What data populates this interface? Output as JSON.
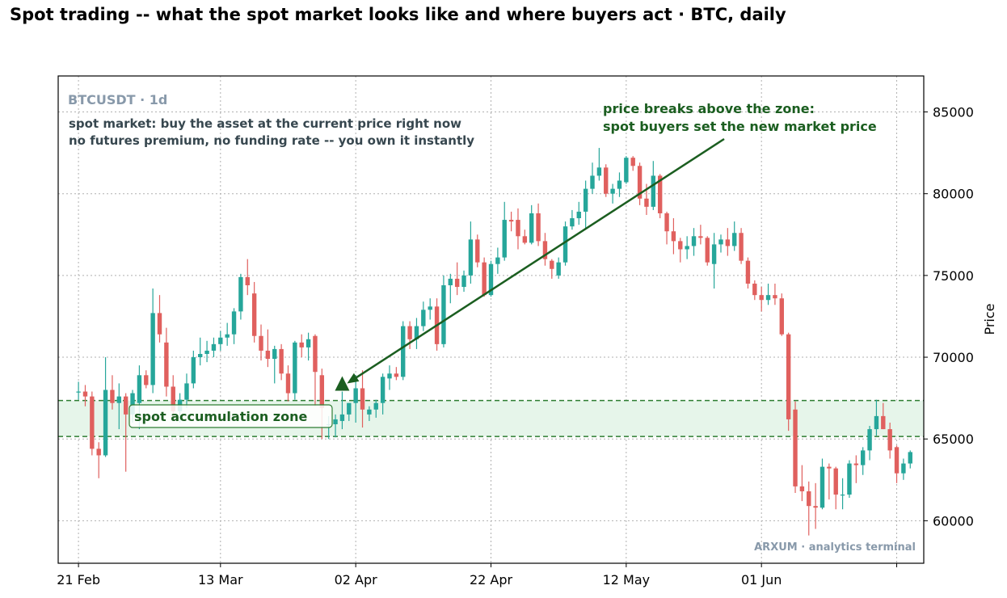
{
  "chart_data": {
    "type": "candlestick",
    "title": "Spot trading -- what the spot market looks like and where buyers act  ·  BTC, daily",
    "symbol_label": "BTCUSDT · 1d",
    "ylabel": "Price",
    "xlabel": "",
    "ylim": [
      57400,
      87200
    ],
    "yticks": [
      60000,
      65000,
      70000,
      75000,
      80000,
      85000
    ],
    "x_range": [
      "2024-02-18",
      "2024-06-25"
    ],
    "xticks": [
      {
        "date": "2024-02-21",
        "label": "21 Feb"
      },
      {
        "date": "2024-03-13",
        "label": "13 Mar"
      },
      {
        "date": "2024-04-02",
        "label": "02 Apr"
      },
      {
        "date": "2024-04-22",
        "label": "22 Apr"
      },
      {
        "date": "2024-05-12",
        "label": "12 May"
      },
      {
        "date": "2024-06-01",
        "label": "01 Jun"
      },
      {
        "date": "2024-06-21",
        "label": ""
      }
    ],
    "grid": true,
    "colors": {
      "up": "#26a69a",
      "down": "#e0605e",
      "zone_fill": "#e6f5ea",
      "zone_line": "#2e7d32",
      "annotation": "#1b5e20",
      "muted": "#8899aa",
      "note": "#37474f"
    },
    "zone": {
      "low": 65150,
      "high": 67350,
      "label": "spot accumulation zone"
    },
    "breakout_marker": {
      "date": "2024-03-31",
      "price": 68300
    },
    "annotation": {
      "lines": [
        "price breaks above the zone:",
        "spot buyers set the new market price"
      ],
      "arrow_to": {
        "date": "2024-03-31",
        "price": 68300
      }
    },
    "notes": [
      "spot market: buy the asset at the current price right now",
      "no futures premium, no funding rate -- you own it instantly"
    ],
    "watermark": "ARXUM · analytics terminal",
    "candles": [
      {
        "date": "2024-02-21",
        "o": 67900,
        "h": 68500,
        "l": 67400,
        "c": 67900
      },
      {
        "date": "2024-02-22",
        "o": 67900,
        "h": 68300,
        "l": 67000,
        "c": 67600
      },
      {
        "date": "2024-02-23",
        "o": 67600,
        "h": 67900,
        "l": 64000,
        "c": 64400
      },
      {
        "date": "2024-02-24",
        "o": 64400,
        "h": 64800,
        "l": 62600,
        "c": 64000
      },
      {
        "date": "2024-02-25",
        "o": 64000,
        "h": 70000,
        "l": 63900,
        "c": 68000
      },
      {
        "date": "2024-02-26",
        "o": 68000,
        "h": 68900,
        "l": 66800,
        "c": 67200
      },
      {
        "date": "2024-02-27",
        "o": 67200,
        "h": 68400,
        "l": 65600,
        "c": 67600
      },
      {
        "date": "2024-02-28",
        "o": 67600,
        "h": 67800,
        "l": 63000,
        "c": 66500
      },
      {
        "date": "2024-02-29",
        "o": 66500,
        "h": 68000,
        "l": 66000,
        "c": 67800
      },
      {
        "date": "2024-03-01",
        "o": 67200,
        "h": 69500,
        "l": 65600,
        "c": 68900
      },
      {
        "date": "2024-03-02",
        "o": 68900,
        "h": 69200,
        "l": 68100,
        "c": 68300
      },
      {
        "date": "2024-03-03",
        "o": 68300,
        "h": 74200,
        "l": 67800,
        "c": 72700
      },
      {
        "date": "2024-03-04",
        "o": 72700,
        "h": 73800,
        "l": 70900,
        "c": 71400
      },
      {
        "date": "2024-03-05",
        "o": 70900,
        "h": 71800,
        "l": 67600,
        "c": 68200
      },
      {
        "date": "2024-03-06",
        "o": 68200,
        "h": 68900,
        "l": 66200,
        "c": 66700
      },
      {
        "date": "2024-03-07",
        "o": 66700,
        "h": 67800,
        "l": 66000,
        "c": 67400
      },
      {
        "date": "2024-03-08",
        "o": 67400,
        "h": 69000,
        "l": 66900,
        "c": 68400
      },
      {
        "date": "2024-03-09",
        "o": 68400,
        "h": 70400,
        "l": 68100,
        "c": 70000
      },
      {
        "date": "2024-03-10",
        "o": 70000,
        "h": 71200,
        "l": 69500,
        "c": 70200
      },
      {
        "date": "2024-03-11",
        "o": 70200,
        "h": 71000,
        "l": 69700,
        "c": 70400
      },
      {
        "date": "2024-03-12",
        "o": 70400,
        "h": 71200,
        "l": 70000,
        "c": 70800
      },
      {
        "date": "2024-03-13",
        "o": 70800,
        "h": 71600,
        "l": 70400,
        "c": 71200
      },
      {
        "date": "2024-03-14",
        "o": 71200,
        "h": 72100,
        "l": 70700,
        "c": 71400
      },
      {
        "date": "2024-03-15",
        "o": 71400,
        "h": 73000,
        "l": 70800,
        "c": 72800
      },
      {
        "date": "2024-03-16",
        "o": 72800,
        "h": 75100,
        "l": 72300,
        "c": 74900
      },
      {
        "date": "2024-03-17",
        "o": 74900,
        "h": 76000,
        "l": 73800,
        "c": 74400
      },
      {
        "date": "2024-03-18",
        "o": 73900,
        "h": 74600,
        "l": 70900,
        "c": 71300
      },
      {
        "date": "2024-03-19",
        "o": 71300,
        "h": 72000,
        "l": 69800,
        "c": 70400
      },
      {
        "date": "2024-03-20",
        "o": 70400,
        "h": 71700,
        "l": 69400,
        "c": 69900
      },
      {
        "date": "2024-03-21",
        "o": 69900,
        "h": 70700,
        "l": 68400,
        "c": 70500
      },
      {
        "date": "2024-03-22",
        "o": 70500,
        "h": 70800,
        "l": 68600,
        "c": 69000
      },
      {
        "date": "2024-03-23",
        "o": 69000,
        "h": 69500,
        "l": 67300,
        "c": 67800
      },
      {
        "date": "2024-03-24",
        "o": 67800,
        "h": 71000,
        "l": 67400,
        "c": 70900
      },
      {
        "date": "2024-03-25",
        "o": 70900,
        "h": 71400,
        "l": 70000,
        "c": 70600
      },
      {
        "date": "2024-03-26",
        "o": 70600,
        "h": 71500,
        "l": 69800,
        "c": 71100
      },
      {
        "date": "2024-03-27",
        "o": 71300,
        "h": 71400,
        "l": 67000,
        "c": 69100
      },
      {
        "date": "2024-03-28",
        "o": 68900,
        "h": 69300,
        "l": 65000,
        "c": 66900
      },
      {
        "date": "2024-03-29",
        "o": 65900,
        "h": 66400,
        "l": 65000,
        "c": 65900
      },
      {
        "date": "2024-03-30",
        "o": 65900,
        "h": 66500,
        "l": 65100,
        "c": 66200
      },
      {
        "date": "2024-03-31",
        "o": 66100,
        "h": 67900,
        "l": 65600,
        "c": 66500
      },
      {
        "date": "2024-04-01",
        "o": 66500,
        "h": 67200,
        "l": 66100,
        "c": 67200
      },
      {
        "date": "2024-04-02",
        "o": 67200,
        "h": 68900,
        "l": 66000,
        "c": 68100
      },
      {
        "date": "2024-04-03",
        "o": 68100,
        "h": 69200,
        "l": 65700,
        "c": 66800
      },
      {
        "date": "2024-04-04",
        "o": 66500,
        "h": 67000,
        "l": 66100,
        "c": 66800
      },
      {
        "date": "2024-04-05",
        "o": 66800,
        "h": 67400,
        "l": 66300,
        "c": 67200
      },
      {
        "date": "2024-04-06",
        "o": 67200,
        "h": 69000,
        "l": 66500,
        "c": 68800
      },
      {
        "date": "2024-04-07",
        "o": 68700,
        "h": 69500,
        "l": 68000,
        "c": 69000
      },
      {
        "date": "2024-04-08",
        "o": 69000,
        "h": 69400,
        "l": 68600,
        "c": 68800
      },
      {
        "date": "2024-04-09",
        "o": 68800,
        "h": 72200,
        "l": 68600,
        "c": 71900
      },
      {
        "date": "2024-04-10",
        "o": 71900,
        "h": 72200,
        "l": 70500,
        "c": 71100
      },
      {
        "date": "2024-04-11",
        "o": 71100,
        "h": 72400,
        "l": 70500,
        "c": 71900
      },
      {
        "date": "2024-04-12",
        "o": 71900,
        "h": 73400,
        "l": 71600,
        "c": 72900
      },
      {
        "date": "2024-04-13",
        "o": 72900,
        "h": 73600,
        "l": 72300,
        "c": 73100
      },
      {
        "date": "2024-04-14",
        "o": 73100,
        "h": 73600,
        "l": 70400,
        "c": 70800
      },
      {
        "date": "2024-04-15",
        "o": 70800,
        "h": 75000,
        "l": 70600,
        "c": 74400
      },
      {
        "date": "2024-04-16",
        "o": 74400,
        "h": 75100,
        "l": 73300,
        "c": 74800
      },
      {
        "date": "2024-04-17",
        "o": 74800,
        "h": 75800,
        "l": 73800,
        "c": 74300
      },
      {
        "date": "2024-04-18",
        "o": 74300,
        "h": 75300,
        "l": 74000,
        "c": 75000
      },
      {
        "date": "2024-04-19",
        "o": 75000,
        "h": 78300,
        "l": 74500,
        "c": 77200
      },
      {
        "date": "2024-04-20",
        "o": 77200,
        "h": 77500,
        "l": 75500,
        "c": 75800
      },
      {
        "date": "2024-04-21",
        "o": 75800,
        "h": 76100,
        "l": 73700,
        "c": 73800
      },
      {
        "date": "2024-04-22",
        "o": 73800,
        "h": 75900,
        "l": 73700,
        "c": 75700
      },
      {
        "date": "2024-04-23",
        "o": 75700,
        "h": 76700,
        "l": 75100,
        "c": 76100
      },
      {
        "date": "2024-04-24",
        "o": 76100,
        "h": 79500,
        "l": 75900,
        "c": 78400
      },
      {
        "date": "2024-04-25",
        "o": 78400,
        "h": 78900,
        "l": 77700,
        "c": 78300
      },
      {
        "date": "2024-04-26",
        "o": 78400,
        "h": 79100,
        "l": 76600,
        "c": 77400
      },
      {
        "date": "2024-04-27",
        "o": 77400,
        "h": 77800,
        "l": 76900,
        "c": 77000
      },
      {
        "date": "2024-04-28",
        "o": 77000,
        "h": 79300,
        "l": 76900,
        "c": 78800
      },
      {
        "date": "2024-04-29",
        "o": 78800,
        "h": 79400,
        "l": 76800,
        "c": 77100
      },
      {
        "date": "2024-04-30",
        "o": 77100,
        "h": 77600,
        "l": 75600,
        "c": 76000
      },
      {
        "date": "2024-05-01",
        "o": 75900,
        "h": 76000,
        "l": 74800,
        "c": 75400
      },
      {
        "date": "2024-05-02",
        "o": 75000,
        "h": 76100,
        "l": 74800,
        "c": 75800
      },
      {
        "date": "2024-05-03",
        "o": 75800,
        "h": 78300,
        "l": 75600,
        "c": 78000
      },
      {
        "date": "2024-05-04",
        "o": 78000,
        "h": 79000,
        "l": 77800,
        "c": 78500
      },
      {
        "date": "2024-05-05",
        "o": 78500,
        "h": 79500,
        "l": 78100,
        "c": 78900
      },
      {
        "date": "2024-05-06",
        "o": 78900,
        "h": 80800,
        "l": 77900,
        "c": 80300
      },
      {
        "date": "2024-05-07",
        "o": 80300,
        "h": 81900,
        "l": 80000,
        "c": 81100
      },
      {
        "date": "2024-05-08",
        "o": 81100,
        "h": 82800,
        "l": 80800,
        "c": 81600
      },
      {
        "date": "2024-05-09",
        "o": 81600,
        "h": 81800,
        "l": 79800,
        "c": 80000
      },
      {
        "date": "2024-05-10",
        "o": 80000,
        "h": 80600,
        "l": 79400,
        "c": 80300
      },
      {
        "date": "2024-05-11",
        "o": 80300,
        "h": 81300,
        "l": 79800,
        "c": 80800
      },
      {
        "date": "2024-05-12",
        "o": 80700,
        "h": 82300,
        "l": 80600,
        "c": 82200
      },
      {
        "date": "2024-05-13",
        "o": 82200,
        "h": 82300,
        "l": 81400,
        "c": 81700
      },
      {
        "date": "2024-05-14",
        "o": 81700,
        "h": 81900,
        "l": 79300,
        "c": 79700
      },
      {
        "date": "2024-05-15",
        "o": 79700,
        "h": 80600,
        "l": 78700,
        "c": 79200
      },
      {
        "date": "2024-05-16",
        "o": 79200,
        "h": 82000,
        "l": 79000,
        "c": 81100
      },
      {
        "date": "2024-05-17",
        "o": 81100,
        "h": 81200,
        "l": 78500,
        "c": 78800
      },
      {
        "date": "2024-05-18",
        "o": 78800,
        "h": 78900,
        "l": 76900,
        "c": 77700
      },
      {
        "date": "2024-05-19",
        "o": 77700,
        "h": 78500,
        "l": 76300,
        "c": 77100
      },
      {
        "date": "2024-05-20",
        "o": 77100,
        "h": 77300,
        "l": 75800,
        "c": 76600
      },
      {
        "date": "2024-05-21",
        "o": 76600,
        "h": 77400,
        "l": 76000,
        "c": 76800
      },
      {
        "date": "2024-05-22",
        "o": 76800,
        "h": 77900,
        "l": 76200,
        "c": 77400
      },
      {
        "date": "2024-05-23",
        "o": 77400,
        "h": 78100,
        "l": 76900,
        "c": 77300
      },
      {
        "date": "2024-05-24",
        "o": 77300,
        "h": 77400,
        "l": 75600,
        "c": 75800
      },
      {
        "date": "2024-05-25",
        "o": 75700,
        "h": 77600,
        "l": 74200,
        "c": 76900
      },
      {
        "date": "2024-05-26",
        "o": 76900,
        "h": 77500,
        "l": 76400,
        "c": 77200
      },
      {
        "date": "2024-05-27",
        "o": 77200,
        "h": 77900,
        "l": 76200,
        "c": 76800
      },
      {
        "date": "2024-05-28",
        "o": 76800,
        "h": 78300,
        "l": 76500,
        "c": 77600
      },
      {
        "date": "2024-05-29",
        "o": 77600,
        "h": 77900,
        "l": 75700,
        "c": 75900
      },
      {
        "date": "2024-05-30",
        "o": 75900,
        "h": 76100,
        "l": 74200,
        "c": 74500
      },
      {
        "date": "2024-05-31",
        "o": 74500,
        "h": 74700,
        "l": 73500,
        "c": 73800
      },
      {
        "date": "2024-06-01",
        "o": 73800,
        "h": 74300,
        "l": 72800,
        "c": 73500
      },
      {
        "date": "2024-06-02",
        "o": 73500,
        "h": 74500,
        "l": 73200,
        "c": 73800
      },
      {
        "date": "2024-06-03",
        "o": 73800,
        "h": 74500,
        "l": 73200,
        "c": 73600
      },
      {
        "date": "2024-06-04",
        "o": 73600,
        "h": 73900,
        "l": 71300,
        "c": 71400
      },
      {
        "date": "2024-06-05",
        "o": 71400,
        "h": 71500,
        "l": 65500,
        "c": 66200
      },
      {
        "date": "2024-06-06",
        "o": 66800,
        "h": 67300,
        "l": 61700,
        "c": 62100
      },
      {
        "date": "2024-06-07",
        "o": 62100,
        "h": 63400,
        "l": 61200,
        "c": 61800
      },
      {
        "date": "2024-06-08",
        "o": 61800,
        "h": 62400,
        "l": 59100,
        "c": 60900
      },
      {
        "date": "2024-06-09",
        "o": 60900,
        "h": 62300,
        "l": 59500,
        "c": 60800
      },
      {
        "date": "2024-06-10",
        "o": 60800,
        "h": 63800,
        "l": 60700,
        "c": 63300
      },
      {
        "date": "2024-06-11",
        "o": 63300,
        "h": 63500,
        "l": 61300,
        "c": 63200
      },
      {
        "date": "2024-06-12",
        "o": 63200,
        "h": 63300,
        "l": 60700,
        "c": 61600
      },
      {
        "date": "2024-06-13",
        "o": 61600,
        "h": 62600,
        "l": 60700,
        "c": 61600
      },
      {
        "date": "2024-06-14",
        "o": 61600,
        "h": 63700,
        "l": 61400,
        "c": 63500
      },
      {
        "date": "2024-06-15",
        "o": 63500,
        "h": 64000,
        "l": 62300,
        "c": 63400
      },
      {
        "date": "2024-06-16",
        "o": 63400,
        "h": 64500,
        "l": 62800,
        "c": 64300
      },
      {
        "date": "2024-06-17",
        "o": 64300,
        "h": 65800,
        "l": 63700,
        "c": 65600
      },
      {
        "date": "2024-06-18",
        "o": 65600,
        "h": 67400,
        "l": 65200,
        "c": 66400
      },
      {
        "date": "2024-06-19",
        "o": 66400,
        "h": 67200,
        "l": 65600,
        "c": 65600
      },
      {
        "date": "2024-06-20",
        "o": 65600,
        "h": 66000,
        "l": 63800,
        "c": 64300
      },
      {
        "date": "2024-06-21",
        "o": 64500,
        "h": 64600,
        "l": 62300,
        "c": 62900
      },
      {
        "date": "2024-06-22",
        "o": 62900,
        "h": 63800,
        "l": 62500,
        "c": 63500
      },
      {
        "date": "2024-06-23",
        "o": 63500,
        "h": 64300,
        "l": 63200,
        "c": 64200
      }
    ]
  }
}
